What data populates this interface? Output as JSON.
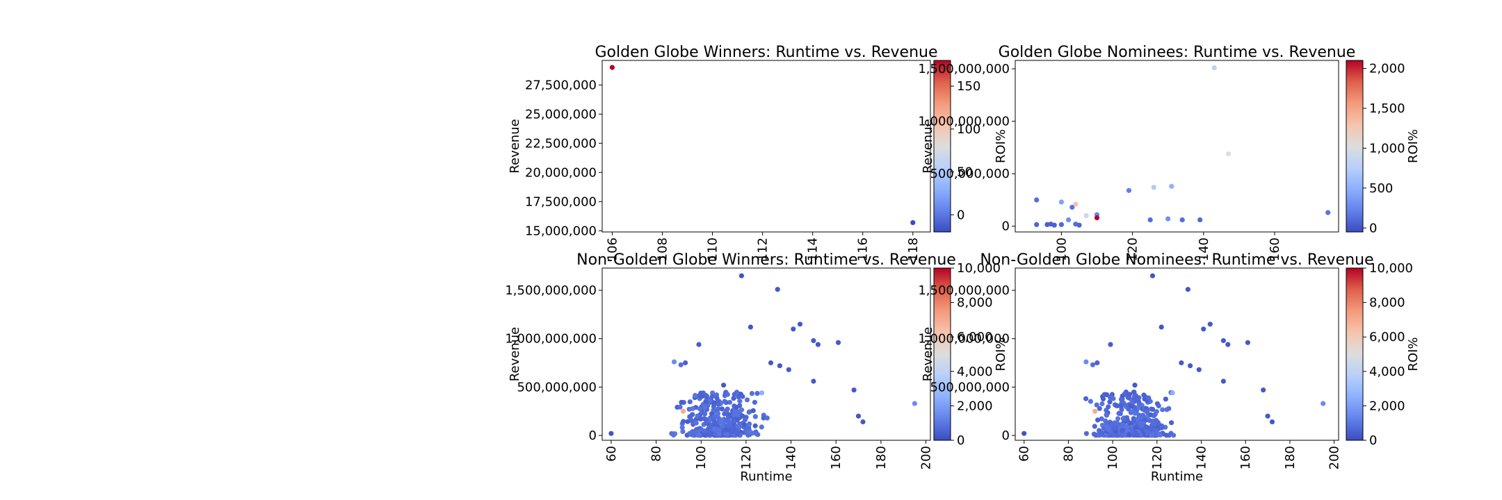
{
  "chart_data": [
    {
      "type": "scatter",
      "title": "Golden Globe Winners: Runtime vs. Revenue",
      "xlabel": "",
      "ylabel": "Revenue",
      "colorbar_label": "ROI%",
      "colormap": "coolwarm",
      "xlim": [
        105.6,
        118.7
      ],
      "ylim": [
        14900000,
        29600000
      ],
      "xticks": [
        106,
        108,
        110,
        112,
        114,
        116,
        118
      ],
      "yticks": [
        15000000,
        17500000,
        20000000,
        22500000,
        25000000,
        27500000
      ],
      "clim": [
        -20,
        180
      ],
      "cticks": [
        0,
        50,
        100,
        150
      ],
      "points": [
        {
          "x": 106,
          "y": 29000000,
          "c": 180
        },
        {
          "x": 118,
          "y": 15700000,
          "c": -20
        }
      ]
    },
    {
      "type": "scatter",
      "title": "Golden Globe Nominees: Runtime vs. Revenue",
      "xlabel": "",
      "ylabel": "Revenue",
      "colorbar_label": "ROI%",
      "colormap": "coolwarm",
      "xlim": [
        87,
        178
      ],
      "ylim": [
        -55000000,
        1580000000
      ],
      "xticks": [
        100,
        120,
        140,
        160
      ],
      "yticks": [
        0,
        500000000,
        1000000000,
        1500000000
      ],
      "clim": [
        -50,
        2100
      ],
      "cticks": [
        0,
        500,
        1000,
        1500,
        2000
      ],
      "points": [
        {
          "x": 93,
          "y": 15000000,
          "c": 80
        },
        {
          "x": 93,
          "y": 250000000,
          "c": 120
        },
        {
          "x": 96,
          "y": 15000000,
          "c": 40
        },
        {
          "x": 97,
          "y": 20000000,
          "c": 60
        },
        {
          "x": 98,
          "y": 10000000,
          "c": 50
        },
        {
          "x": 100,
          "y": 15000000,
          "c": 100
        },
        {
          "x": 100,
          "y": 230000000,
          "c": 400
        },
        {
          "x": 102,
          "y": 60000000,
          "c": 300
        },
        {
          "x": 103,
          "y": 180000000,
          "c": 150
        },
        {
          "x": 104,
          "y": 210000000,
          "c": 1300
        },
        {
          "x": 104,
          "y": 20000000,
          "c": 120
        },
        {
          "x": 105,
          "y": 10000000,
          "c": 80
        },
        {
          "x": 107,
          "y": 100000000,
          "c": 900
        },
        {
          "x": 110,
          "y": 110000000,
          "c": 250
        },
        {
          "x": 110,
          "y": 80000000,
          "c": 2100
        },
        {
          "x": 119,
          "y": 340000000,
          "c": 200
        },
        {
          "x": 125,
          "y": 60000000,
          "c": 120
        },
        {
          "x": 126,
          "y": 370000000,
          "c": 700
        },
        {
          "x": 130,
          "y": 70000000,
          "c": 300
        },
        {
          "x": 131,
          "y": 380000000,
          "c": 500
        },
        {
          "x": 134,
          "y": 60000000,
          "c": 120
        },
        {
          "x": 139,
          "y": 60000000,
          "c": 100
        },
        {
          "x": 143,
          "y": 1510000000,
          "c": 800
        },
        {
          "x": 147,
          "y": 690000000,
          "c": 1000
        },
        {
          "x": 175,
          "y": 130000000,
          "c": 150
        }
      ]
    },
    {
      "type": "scatter",
      "title": "Non-Golden Globe Winners: Runtime vs. Revenue",
      "xlabel": "Runtime",
      "ylabel": "Revenue",
      "colorbar_label": "ROI%",
      "colormap": "coolwarm",
      "xlim": [
        56,
        202
      ],
      "ylim": [
        -50000000,
        1730000000
      ],
      "xticks": [
        60,
        80,
        100,
        120,
        140,
        160,
        180,
        200
      ],
      "yticks": [
        0,
        500000000,
        1000000000,
        1500000000
      ],
      "clim": [
        0,
        10000
      ],
      "cticks": [
        0,
        2000,
        4000,
        6000,
        8000,
        10000
      ],
      "highlights": [
        {
          "x": 60,
          "y": 20000000,
          "c": 200
        },
        {
          "x": 88,
          "y": 760000000,
          "c": 1500
        },
        {
          "x": 91,
          "y": 730000000,
          "c": 800
        },
        {
          "x": 92,
          "y": 250000000,
          "c": 7000
        },
        {
          "x": 93,
          "y": 750000000,
          "c": 500
        },
        {
          "x": 99,
          "y": 940000000,
          "c": 400
        },
        {
          "x": 110,
          "y": 520000000,
          "c": 300
        },
        {
          "x": 118,
          "y": 1650000000,
          "c": 200
        },
        {
          "x": 122,
          "y": 1120000000,
          "c": 200
        },
        {
          "x": 127,
          "y": 440000000,
          "c": 2500
        },
        {
          "x": 131,
          "y": 750000000,
          "c": 300
        },
        {
          "x": 134,
          "y": 1510000000,
          "c": 300
        },
        {
          "x": 135,
          "y": 720000000,
          "c": 300
        },
        {
          "x": 139,
          "y": 680000000,
          "c": 300
        },
        {
          "x": 141,
          "y": 1100000000,
          "c": 300
        },
        {
          "x": 144,
          "y": 1150000000,
          "c": 300
        },
        {
          "x": 150,
          "y": 980000000,
          "c": 300
        },
        {
          "x": 152,
          "y": 940000000,
          "c": 300
        },
        {
          "x": 150,
          "y": 560000000,
          "c": 300
        },
        {
          "x": 161,
          "y": 960000000,
          "c": 300
        },
        {
          "x": 168,
          "y": 470000000,
          "c": 300
        },
        {
          "x": 170,
          "y": 200000000,
          "c": 300
        },
        {
          "x": 172,
          "y": 140000000,
          "c": 300
        },
        {
          "x": 195,
          "y": 330000000,
          "c": 1500
        }
      ],
      "cluster": {
        "n": 420,
        "x_range": [
          72,
          175
        ],
        "x_center": 108,
        "x_spread": 16,
        "y_max_typical": 450000000,
        "c": 400
      }
    },
    {
      "type": "scatter",
      "title": "Non-Golden Globe Nominees: Runtime vs. Revenue",
      "xlabel": "Runtime",
      "ylabel": "Revenue",
      "colorbar_label": "ROI%",
      "colormap": "coolwarm",
      "xlim": [
        56,
        202
      ],
      "ylim": [
        -50000000,
        1730000000
      ],
      "xticks": [
        60,
        80,
        100,
        120,
        140,
        160,
        180,
        200
      ],
      "yticks": [
        0,
        500000000,
        1000000000,
        1500000000
      ],
      "clim": [
        0,
        10000
      ],
      "cticks": [
        0,
        2000,
        4000,
        6000,
        8000,
        10000
      ],
      "highlights": [
        {
          "x": 60,
          "y": 20000000,
          "c": 200
        },
        {
          "x": 88,
          "y": 760000000,
          "c": 1500
        },
        {
          "x": 91,
          "y": 730000000,
          "c": 800
        },
        {
          "x": 92,
          "y": 250000000,
          "c": 7000
        },
        {
          "x": 93,
          "y": 750000000,
          "c": 500
        },
        {
          "x": 99,
          "y": 940000000,
          "c": 400
        },
        {
          "x": 110,
          "y": 520000000,
          "c": 300
        },
        {
          "x": 118,
          "y": 1650000000,
          "c": 200
        },
        {
          "x": 122,
          "y": 1120000000,
          "c": 200
        },
        {
          "x": 127,
          "y": 440000000,
          "c": 2500
        },
        {
          "x": 131,
          "y": 750000000,
          "c": 300
        },
        {
          "x": 134,
          "y": 1510000000,
          "c": 300
        },
        {
          "x": 135,
          "y": 720000000,
          "c": 300
        },
        {
          "x": 139,
          "y": 680000000,
          "c": 300
        },
        {
          "x": 141,
          "y": 1100000000,
          "c": 300
        },
        {
          "x": 144,
          "y": 1150000000,
          "c": 300
        },
        {
          "x": 150,
          "y": 980000000,
          "c": 300
        },
        {
          "x": 152,
          "y": 940000000,
          "c": 300
        },
        {
          "x": 150,
          "y": 560000000,
          "c": 300
        },
        {
          "x": 161,
          "y": 960000000,
          "c": 300
        },
        {
          "x": 168,
          "y": 470000000,
          "c": 300
        },
        {
          "x": 170,
          "y": 200000000,
          "c": 300
        },
        {
          "x": 172,
          "y": 140000000,
          "c": 300
        },
        {
          "x": 195,
          "y": 330000000,
          "c": 1500
        }
      ],
      "cluster": {
        "n": 420,
        "x_range": [
          72,
          175
        ],
        "x_center": 108,
        "x_spread": 16,
        "y_max_typical": 450000000,
        "c": 400
      }
    }
  ]
}
